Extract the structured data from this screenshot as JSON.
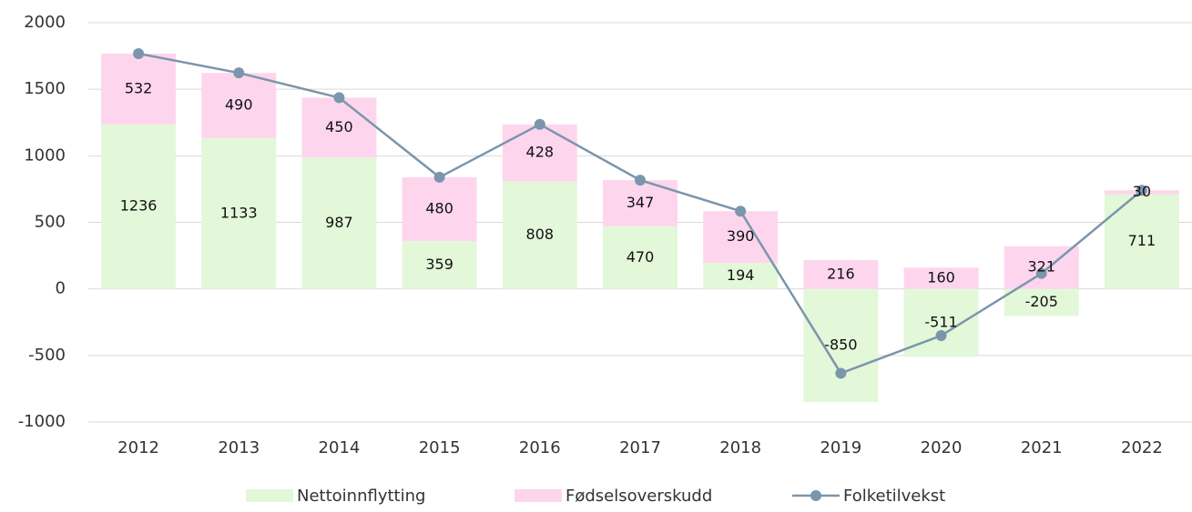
{
  "chart_data": {
    "type": "bar_line",
    "categories": [
      "2012",
      "2013",
      "2014",
      "2015",
      "2016",
      "2017",
      "2018",
      "2019",
      "2020",
      "2021",
      "2022"
    ],
    "series": [
      {
        "name": "Nettoinnflytting",
        "color": "#e3f8d9",
        "type": "bar",
        "values": [
          1236,
          1133,
          987,
          359,
          808,
          470,
          194,
          -850,
          -511,
          -205,
          711
        ]
      },
      {
        "name": "Fødselsoverskudd",
        "color": "#fdd6ee",
        "type": "bar",
        "values": [
          532,
          490,
          450,
          480,
          428,
          347,
          390,
          216,
          160,
          321,
          30
        ]
      },
      {
        "name": "Folketilvekst",
        "color": "#7b96ac",
        "type": "line",
        "values": [
          1768,
          1623,
          1437,
          839,
          1236,
          817,
          584,
          -634,
          -351,
          116,
          741
        ]
      }
    ],
    "stacked": true,
    "ylim": [
      -1000,
      2000
    ],
    "yticks": [
      -1000,
      -500,
      0,
      500,
      1000,
      1500,
      2000
    ],
    "grid": true,
    "legend": "bottom"
  }
}
